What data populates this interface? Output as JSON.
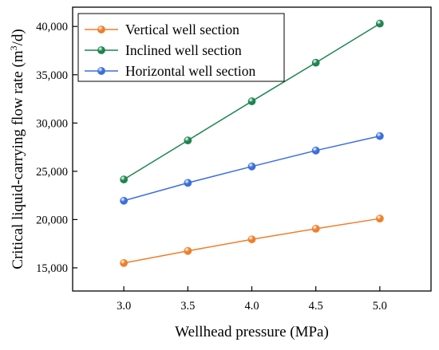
{
  "chart_data": {
    "type": "line",
    "xlabel": "Wellhead pressure (MPa)",
    "ylabel_main": "Critical liquid-carrying flow rate (m",
    "ylabel_sup": "3",
    "ylabel_tail": "/d)",
    "x": [
      3.0,
      3.5,
      4.0,
      4.5,
      5.0
    ],
    "x_tick_labels": [
      "3.0",
      "3.5",
      "4.0",
      "4.5",
      "5.0"
    ],
    "xlim": [
      2.6,
      5.4
    ],
    "y_ticks": [
      15000,
      20000,
      25000,
      30000,
      35000,
      40000
    ],
    "y_tick_labels": [
      "15,000",
      "20,000",
      "25,000",
      "30,000",
      "35,000",
      "40,000"
    ],
    "ylim": [
      12600,
      42000
    ],
    "grid": false,
    "legend_position": "top-left",
    "series": [
      {
        "name": "Vertical well section",
        "color": "#f07e2a",
        "values": [
          15500,
          16750,
          17950,
          19050,
          20100
        ]
      },
      {
        "name": "Inclined well section",
        "color": "#1e8450",
        "values": [
          24150,
          28200,
          32250,
          36250,
          40300
        ]
      },
      {
        "name": "Horizontal well section",
        "color": "#3a6fde",
        "values": [
          21950,
          23800,
          25500,
          27150,
          28650
        ]
      }
    ]
  }
}
